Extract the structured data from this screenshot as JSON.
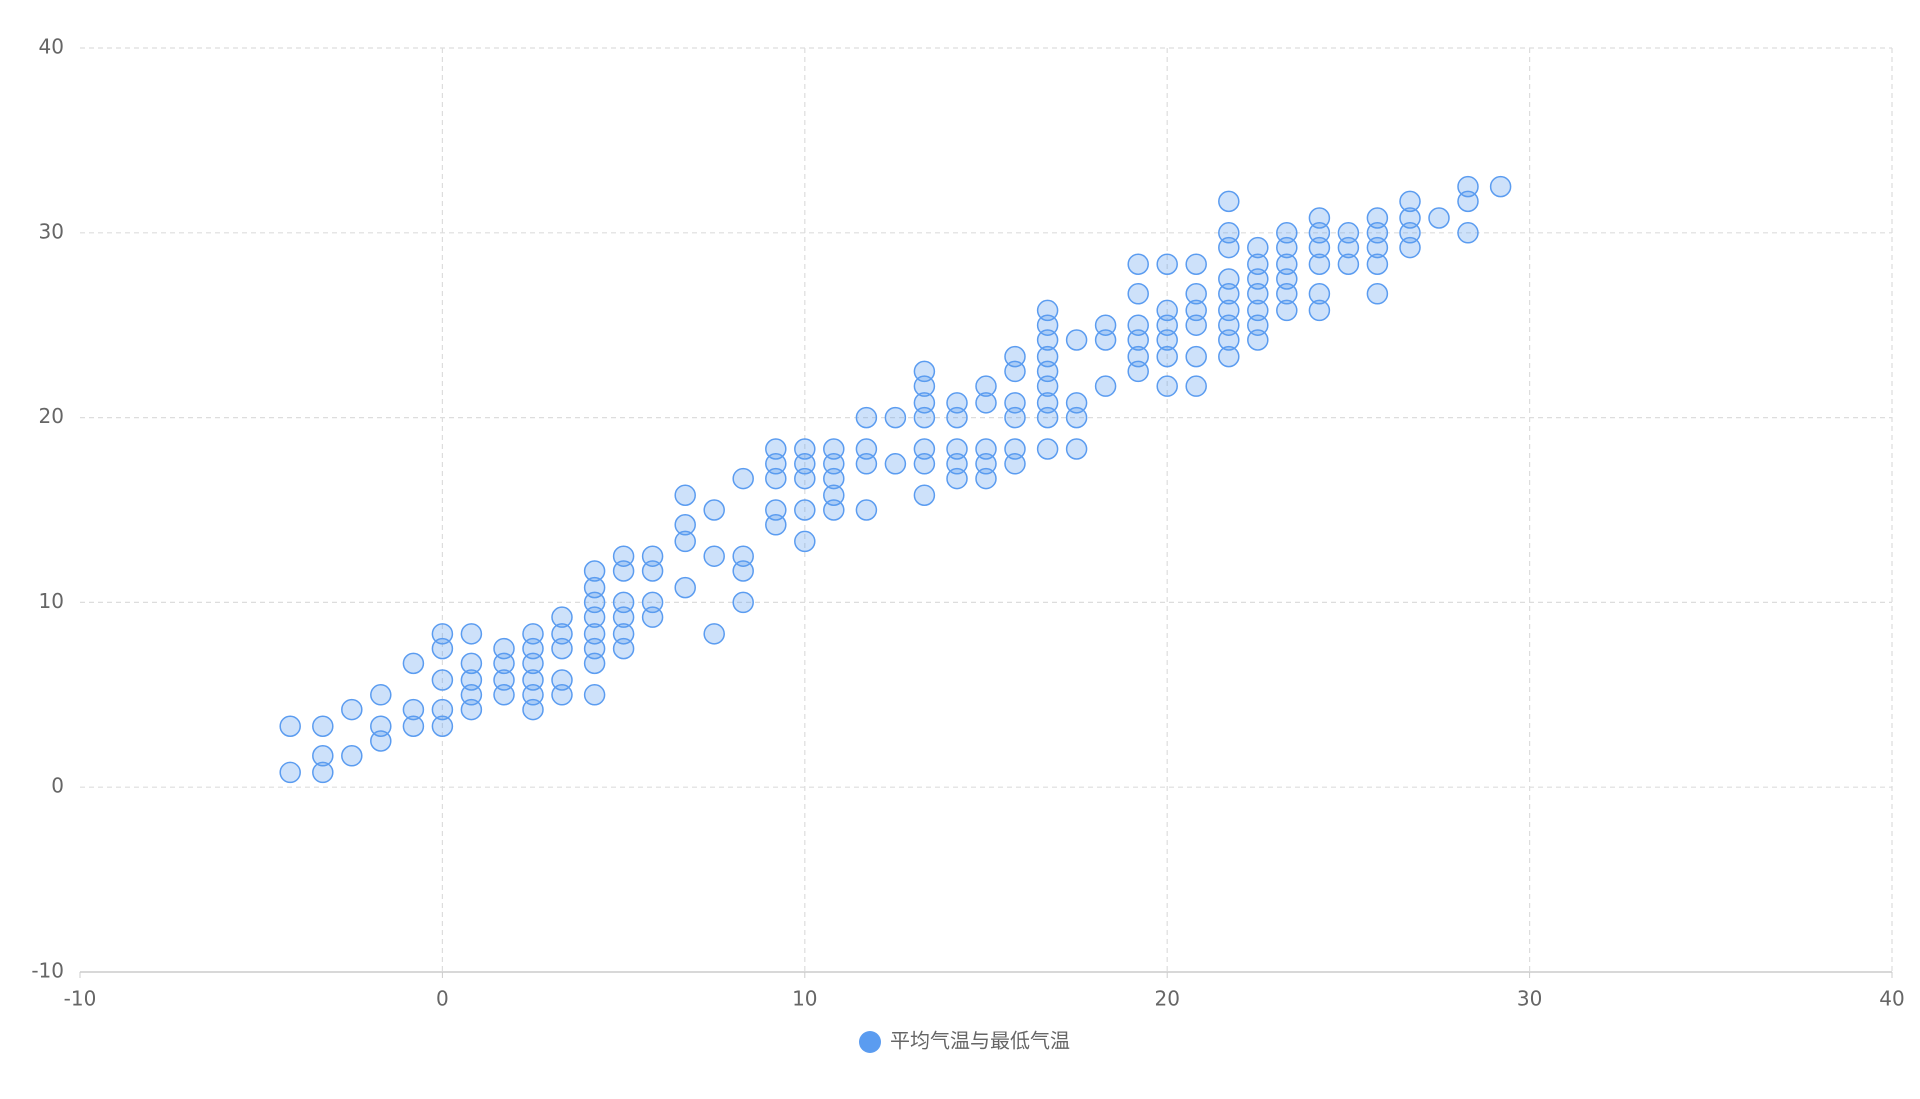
{
  "chart_data": {
    "type": "scatter",
    "xlim": [
      -10,
      40
    ],
    "ylim": [
      -10,
      40
    ],
    "xticks": [
      -10,
      0,
      10,
      20,
      30,
      40
    ],
    "yticks": [
      -10,
      0,
      10,
      20,
      30,
      40
    ],
    "grid": true,
    "legend": "bottom",
    "series": [
      {
        "name": "平均气温与最低气温",
        "color": "#5b9cf0",
        "x": [
          -4.2,
          -4.2,
          -3.3,
          -3.3,
          -3.3,
          -2.5,
          -2.5,
          -1.7,
          -1.7,
          -1.7,
          -0.8,
          -0.8,
          -0.8,
          0,
          0,
          0,
          0,
          0,
          0.8,
          0.8,
          0.8,
          0.8,
          0.8,
          1.7,
          1.7,
          1.7,
          1.7,
          2.5,
          2.5,
          2.5,
          2.5,
          2.5,
          2.5,
          3.3,
          3.3,
          3.3,
          3.3,
          3.3,
          4.2,
          4.2,
          4.2,
          4.2,
          4.2,
          4.2,
          4.2,
          4.2,
          5,
          5,
          5,
          5,
          5,
          5,
          5.8,
          5.8,
          5.8,
          5.8,
          6.7,
          6.7,
          6.7,
          6.7,
          7.5,
          7.5,
          7.5,
          8.3,
          8.3,
          8.3,
          8.3,
          9.2,
          9.2,
          9.2,
          9.2,
          9.2,
          10,
          10,
          10,
          10,
          10,
          10.8,
          10.8,
          10.8,
          10.8,
          10.8,
          11.7,
          11.7,
          11.7,
          11.7,
          12.5,
          12.5,
          13.3,
          13.3,
          13.3,
          13.3,
          13.3,
          13.3,
          13.3,
          14.2,
          14.2,
          14.2,
          14.2,
          14.2,
          15,
          15,
          15,
          15,
          15,
          15.8,
          15.8,
          15.8,
          15.8,
          15.8,
          15.8,
          16.7,
          16.7,
          16.7,
          16.7,
          16.7,
          16.7,
          16.7,
          16.7,
          16.7,
          17.5,
          17.5,
          17.5,
          17.5,
          18.3,
          18.3,
          18.3,
          19.2,
          19.2,
          19.2,
          19.2,
          19.2,
          19.2,
          20,
          20,
          20,
          20,
          20,
          20,
          20.8,
          20.8,
          20.8,
          20.8,
          20.8,
          20.8,
          21.7,
          21.7,
          21.7,
          21.7,
          21.7,
          21.7,
          21.7,
          21.7,
          21.7,
          22.5,
          22.5,
          22.5,
          22.5,
          22.5,
          22.5,
          22.5,
          23.3,
          23.3,
          23.3,
          23.3,
          23.3,
          23.3,
          24.2,
          24.2,
          24.2,
          24.2,
          24.2,
          24.2,
          25,
          25,
          25,
          25.8,
          25.8,
          25.8,
          25.8,
          25.8,
          26.7,
          26.7,
          26.7,
          26.7,
          27.5,
          28.3,
          28.3,
          28.3,
          29.2
        ],
        "values": [
          3.3,
          0.8,
          3.3,
          1.7,
          0.8,
          4.2,
          1.7,
          5,
          3.3,
          2.5,
          6.7,
          4.2,
          3.3,
          8.3,
          7.5,
          5.8,
          4.2,
          3.3,
          8.3,
          6.7,
          5.8,
          5,
          4.2,
          7.5,
          6.7,
          5.8,
          5,
          8.3,
          7.5,
          6.7,
          5.8,
          5,
          4.2,
          9.2,
          8.3,
          7.5,
          5.8,
          5,
          11.7,
          10.8,
          10,
          9.2,
          8.3,
          7.5,
          6.7,
          5,
          12.5,
          11.7,
          10,
          9.2,
          8.3,
          7.5,
          12.5,
          11.7,
          10,
          9.2,
          15.8,
          14.2,
          13.3,
          10.8,
          15,
          12.5,
          8.3,
          16.7,
          12.5,
          11.7,
          10,
          18.3,
          17.5,
          16.7,
          15,
          14.2,
          18.3,
          17.5,
          16.7,
          15,
          13.3,
          18.3,
          17.5,
          16.7,
          15.8,
          15,
          20,
          18.3,
          17.5,
          15,
          20,
          17.5,
          22.5,
          21.7,
          20.8,
          20,
          18.3,
          17.5,
          15.8,
          20.8,
          20,
          18.3,
          17.5,
          16.7,
          21.7,
          20.8,
          18.3,
          17.5,
          16.7,
          23.3,
          22.5,
          20.8,
          20,
          18.3,
          17.5,
          25.8,
          25,
          24.2,
          23.3,
          22.5,
          21.7,
          20.8,
          20,
          18.3,
          24.2,
          20.8,
          20,
          18.3,
          25,
          24.2,
          21.7,
          28.3,
          26.7,
          25,
          24.2,
          23.3,
          22.5,
          28.3,
          25.8,
          25,
          24.2,
          23.3,
          21.7,
          28.3,
          26.7,
          25.8,
          25,
          23.3,
          21.7,
          31.7,
          30,
          29.2,
          27.5,
          26.7,
          25.8,
          25,
          24.2,
          23.3,
          29.2,
          28.3,
          27.5,
          26.7,
          25.8,
          25,
          24.2,
          30,
          29.2,
          28.3,
          27.5,
          26.7,
          25.8,
          30.8,
          30,
          29.2,
          28.3,
          26.7,
          25.8,
          30,
          29.2,
          28.3,
          30.8,
          30,
          29.2,
          28.3,
          26.7,
          31.7,
          30.8,
          30,
          29.2,
          30.8,
          32.5,
          31.7,
          30,
          32.5
        ]
      }
    ]
  }
}
